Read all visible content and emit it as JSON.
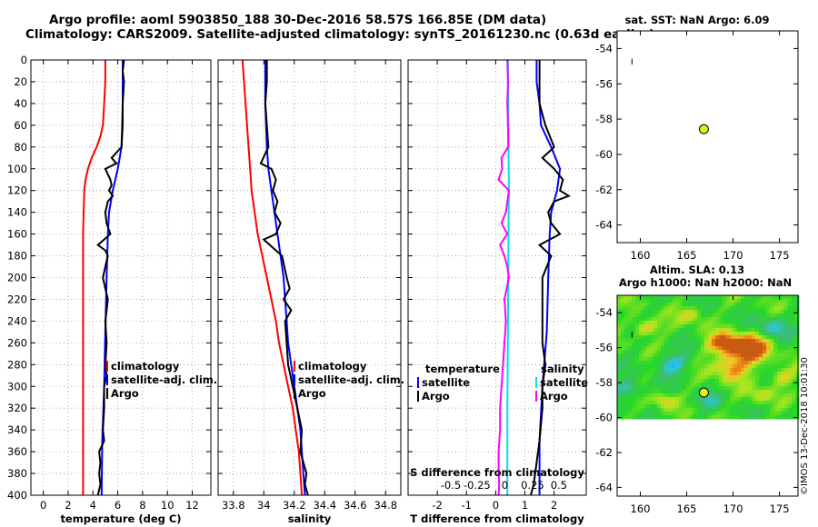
{
  "header": {
    "line1": "Argo profile: aoml 5903850_188 30-Dec-2016 58.57S 166.85E (DM data)",
    "line2": "Climatology: CARS2009. Satellite-adjusted climatology: synTS_20161230.nc (0.63d earlier)"
  },
  "chart_data": [
    {
      "type": "line",
      "name": "temperature-profile",
      "xlabel": "temperature (deg C)",
      "ylabel": "depth",
      "xlim": [
        -1,
        13.5
      ],
      "ylim": [
        0,
        400
      ],
      "xticks": [
        0,
        2,
        4,
        6,
        8,
        10,
        12
      ],
      "yticks": [
        0,
        20,
        40,
        60,
        80,
        100,
        120,
        140,
        160,
        180,
        200,
        220,
        240,
        260,
        280,
        300,
        320,
        340,
        360,
        380,
        400
      ],
      "grid": true,
      "legend": [
        "climatology",
        "satellite-adj. clim.",
        "Argo"
      ],
      "series": [
        {
          "name": "climatology",
          "color": "#ff0000",
          "depth": [
            0,
            20,
            40,
            60,
            70,
            80,
            90,
            100,
            110,
            120,
            140,
            160,
            200,
            250,
            300,
            350,
            400
          ],
          "values": [
            5.0,
            5.0,
            4.9,
            4.8,
            4.6,
            4.3,
            3.9,
            3.6,
            3.4,
            3.3,
            3.25,
            3.2,
            3.2,
            3.2,
            3.2,
            3.2,
            3.2
          ]
        },
        {
          "name": "satellite-adj. clim.",
          "color": "#0000ff",
          "depth": [
            0,
            20,
            40,
            60,
            80,
            100,
            120,
            140,
            160,
            200,
            250,
            300,
            350,
            400
          ],
          "values": [
            6.4,
            6.4,
            6.4,
            6.35,
            6.3,
            6.0,
            5.6,
            5.3,
            5.2,
            5.1,
            5.0,
            4.9,
            4.75,
            4.7
          ]
        },
        {
          "name": "Argo",
          "color": "#000000",
          "depth": [
            0,
            10,
            20,
            40,
            60,
            80,
            90,
            95,
            100,
            110,
            115,
            120,
            125,
            130,
            140,
            150,
            160,
            165,
            170,
            175,
            180,
            190,
            200,
            210,
            220,
            240,
            260,
            280,
            290,
            300,
            320,
            340,
            350,
            360,
            370,
            380,
            390,
            400
          ],
          "values": [
            6.5,
            6.4,
            6.5,
            6.4,
            6.4,
            6.3,
            5.5,
            5.9,
            5.0,
            5.4,
            5.5,
            5.3,
            5.6,
            5.2,
            5.0,
            5.1,
            5.4,
            4.9,
            4.4,
            5.0,
            5.2,
            5.0,
            4.8,
            5.0,
            5.2,
            5.0,
            5.1,
            5.0,
            5.1,
            4.9,
            4.9,
            4.8,
            4.9,
            4.5,
            4.6,
            4.5,
            4.6,
            4.4
          ]
        }
      ]
    },
    {
      "type": "line",
      "name": "salinity-profile",
      "xlabel": "salinity",
      "xlim": [
        33.7,
        34.9
      ],
      "ylim": [
        0,
        400
      ],
      "xticks": [
        33.8,
        34,
        34.2,
        34.4,
        34.6,
        34.8
      ],
      "grid": true,
      "legend": [
        "climatology",
        "satellite-adj. clim.",
        "Argo"
      ],
      "series": [
        {
          "name": "climatology",
          "color": "#ff0000",
          "depth": [
            0,
            20,
            40,
            60,
            80,
            100,
            120,
            140,
            160,
            180,
            200,
            220,
            240,
            260,
            280,
            300,
            320,
            340,
            360,
            380,
            400
          ],
          "values": [
            33.86,
            33.87,
            33.88,
            33.89,
            33.9,
            33.91,
            33.92,
            33.94,
            33.96,
            33.99,
            34.02,
            34.05,
            34.08,
            34.1,
            34.13,
            34.16,
            34.19,
            34.21,
            34.23,
            34.24,
            34.25
          ]
        },
        {
          "name": "satellite-adj. clim.",
          "color": "#0000ff",
          "depth": [
            0,
            40,
            80,
            100,
            120,
            140,
            160,
            180,
            200,
            220,
            240,
            260,
            280,
            300,
            320,
            340,
            360,
            380,
            400
          ],
          "values": [
            34.01,
            34.01,
            34.02,
            34.03,
            34.05,
            34.07,
            34.09,
            34.11,
            34.13,
            34.14,
            34.15,
            34.16,
            34.18,
            34.2,
            34.22,
            34.24,
            34.25,
            34.26,
            34.27
          ]
        },
        {
          "name": "Argo",
          "color": "#000000",
          "depth": [
            0,
            20,
            40,
            60,
            80,
            95,
            100,
            110,
            120,
            130,
            140,
            150,
            160,
            165,
            170,
            180,
            200,
            210,
            220,
            230,
            240,
            260,
            280,
            300,
            320,
            340,
            360,
            370,
            380,
            390,
            400
          ],
          "values": [
            34.02,
            34.02,
            34.01,
            34.02,
            34.03,
            33.98,
            34.05,
            34.08,
            34.06,
            34.09,
            34.07,
            34.11,
            34.08,
            34.0,
            34.04,
            34.12,
            34.15,
            34.17,
            34.13,
            34.18,
            34.14,
            34.15,
            34.16,
            34.19,
            34.22,
            34.25,
            34.24,
            34.26,
            34.28,
            34.27,
            34.29
          ]
        }
      ]
    },
    {
      "type": "line",
      "name": "difference-profile",
      "xlabel": "T difference from climatology",
      "xlim": [
        -3,
        3.1
      ],
      "ylim": [
        0,
        400
      ],
      "xticks": [
        -2,
        -1,
        0,
        1,
        2
      ],
      "top_label": "S difference from climatology",
      "top_xticks": [
        "-0.5",
        "-0.25",
        "0",
        "0.25",
        "0.5"
      ],
      "grid": true,
      "legend_left": [
        "temperature",
        "satellite",
        "Argo"
      ],
      "legend_right": [
        "salinity",
        "satellite",
        "Argo"
      ],
      "series": [
        {
          "name": "temperature-satellite",
          "color": "#0000ff",
          "depth": [
            0,
            20,
            40,
            60,
            80,
            100,
            120,
            140,
            160,
            200,
            250,
            300,
            350,
            400
          ],
          "values": [
            1.4,
            1.4,
            1.5,
            1.55,
            1.9,
            2.2,
            2.1,
            1.9,
            1.85,
            1.8,
            1.75,
            1.6,
            1.5,
            1.5
          ]
        },
        {
          "name": "temperature-Argo",
          "color": "#000000",
          "depth": [
            0,
            20,
            40,
            60,
            80,
            90,
            100,
            110,
            120,
            125,
            130,
            140,
            150,
            160,
            170,
            180,
            200,
            220,
            240,
            260,
            280,
            300,
            320,
            350,
            370,
            390,
            400
          ],
          "values": [
            1.5,
            1.5,
            1.5,
            1.7,
            2.0,
            1.6,
            2.0,
            2.3,
            2.2,
            2.5,
            2.0,
            1.8,
            1.9,
            2.2,
            1.5,
            1.9,
            1.6,
            1.6,
            1.6,
            1.6,
            1.7,
            1.6,
            1.6,
            1.5,
            1.4,
            1.3,
            1.2
          ]
        },
        {
          "name": "salinity-satellite",
          "color": "#00e0e0",
          "depth": [
            0,
            40,
            80,
            120,
            160,
            200,
            240,
            280,
            320,
            360,
            400
          ],
          "values": [
            0.42,
            0.43,
            0.44,
            0.45,
            0.44,
            0.43,
            0.42,
            0.41,
            0.4,
            0.4,
            0.4
          ]
        },
        {
          "name": "salinity-Argo",
          "color": "#ff00ff",
          "depth": [
            0,
            20,
            40,
            60,
            80,
            90,
            100,
            110,
            120,
            140,
            150,
            160,
            170,
            180,
            190,
            200,
            220,
            240,
            260,
            280,
            300,
            320,
            340,
            360,
            380,
            390,
            400
          ],
          "values": [
            0.4,
            0.42,
            0.4,
            0.42,
            0.43,
            0.2,
            0.22,
            0.1,
            0.45,
            0.35,
            0.2,
            0.4,
            0.15,
            0.3,
            0.4,
            0.45,
            0.3,
            0.35,
            0.3,
            0.25,
            0.2,
            0.15,
            0.15,
            0.1,
            0.1,
            0.12,
            0.1
          ]
        }
      ]
    },
    {
      "type": "scatter",
      "name": "sst-map",
      "title": "sat. SST: NaN Argo: 6.09",
      "xlim": [
        157.5,
        177
      ],
      "ylim": [
        -65,
        -53
      ],
      "xticks": [
        160,
        165,
        170,
        175
      ],
      "yticks": [
        -54,
        -56,
        -58,
        -60,
        -62,
        -64
      ],
      "grid": false,
      "points": [
        {
          "x": 166.85,
          "y": -58.57,
          "color": "#ddee22"
        }
      ],
      "marks": [
        {
          "x": 159.1,
          "y": -54.7,
          "text": "ı"
        }
      ]
    },
    {
      "type": "heatmap",
      "name": "sla-map",
      "title_line1": "Altim. SLA: 0.13",
      "title_line2": "Argo h1000: NaN h2000: NaN",
      "xlim": [
        157.5,
        177
      ],
      "ylim": [
        -64.5,
        -53
      ],
      "xticks": [
        160,
        165,
        170,
        175
      ],
      "yticks": [
        -54,
        -56,
        -58,
        -60,
        -62,
        -64
      ],
      "data_extent_lat": [
        -60,
        -53
      ],
      "grid": false,
      "points": [
        {
          "x": 166.85,
          "y": -58.57,
          "color": "#ddee22"
        }
      ],
      "marks": [
        {
          "x": 159.1,
          "y": -55.2,
          "text": "ı"
        }
      ]
    }
  ],
  "credit": "©IMOS 13-Dec-2018 10:01:30"
}
